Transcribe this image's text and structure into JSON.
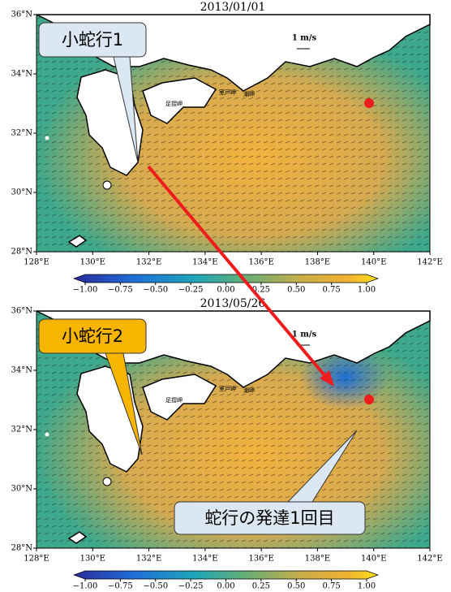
{
  "panels": [
    {
      "title": "2013/01/01",
      "callouts": [
        "小蛇行1"
      ]
    },
    {
      "title": "2013/05/26",
      "callouts": [
        "小蛇行2",
        "蛇行の発達1回目"
      ]
    }
  ],
  "place_labels": [
    "室戸岬",
    "潮岬",
    "足摺岬"
  ],
  "scale_label": "1 m/s",
  "lon_ticks": [
    {
      "value": 128,
      "label": "128°E"
    },
    {
      "value": 130,
      "label": "130°E"
    },
    {
      "value": 132,
      "label": "132°E"
    },
    {
      "value": 134,
      "label": "134°E"
    },
    {
      "value": 136,
      "label": "136°E"
    },
    {
      "value": 138,
      "label": "138°E"
    },
    {
      "value": 140,
      "label": "140°E"
    },
    {
      "value": 142,
      "label": "142°E"
    }
  ],
  "lat_ticks": [
    {
      "value": 36,
      "label": "36°N"
    },
    {
      "value": 34,
      "label": "34°N"
    },
    {
      "value": 32,
      "label": "32°N"
    },
    {
      "value": 30,
      "label": "30°N"
    },
    {
      "value": 28,
      "label": "28°N"
    }
  ],
  "colorbar_ticks": [
    {
      "value": -1,
      "label": "−1.00"
    },
    {
      "value": -0.75,
      "label": "−0.75"
    },
    {
      "value": -0.5,
      "label": "−0.50"
    },
    {
      "value": -0.25,
      "label": "−0.25"
    },
    {
      "value": 0,
      "label": "0.00"
    },
    {
      "value": 0.25,
      "label": "0.25"
    },
    {
      "value": 0.5,
      "label": "0.50"
    },
    {
      "value": 0.75,
      "label": "0.75"
    },
    {
      "value": 1,
      "label": "1.00"
    }
  ]
}
